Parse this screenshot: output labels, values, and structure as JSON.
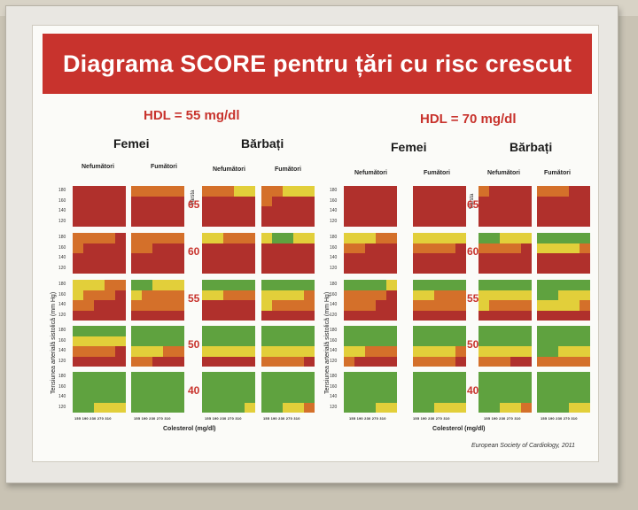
{
  "title": "Diagrama SCORE pentru țări cu risc crescut",
  "panels": [
    {
      "hdl": "HDL = 55 mg/dl",
      "female": "Femei",
      "male": "Bărbați"
    },
    {
      "hdl": "HDL = 70 mg/dl",
      "female": "Femei",
      "male": "Bărbați"
    }
  ],
  "smoking": {
    "non": "Nefumători",
    "smoker": "Fumători"
  },
  "age_caption": "Vârsta",
  "ages": [
    "65",
    "60",
    "55",
    "50",
    "40"
  ],
  "bp_values": [
    "180",
    "160",
    "140",
    "120"
  ],
  "bp_axis_label": "Tensiunea arterială sistolică (mm Hg)",
  "cholesterol_ticks": "155 190 230 270 310",
  "cholesterol_label": "Colesterol (mg/dl)",
  "footer": "European Society of Cardiology, 2011",
  "colors": {
    "red": "#b0302c",
    "orange": "#d4702a",
    "yellow": "#e2cf3a",
    "green": "#5fa23f",
    "banner": "#c8332d"
  },
  "grid_levels": [
    [
      [
        3,
        3,
        3,
        3,
        3,
        2,
        2,
        2,
        2,
        2,
        2,
        2,
        2,
        1,
        1,
        2,
        2,
        1,
        1,
        1
      ],
      [
        3,
        3,
        3,
        3,
        3,
        3,
        3,
        3,
        3,
        3,
        3,
        3,
        3,
        3,
        3,
        2,
        3,
        3,
        3,
        3
      ],
      [
        3,
        3,
        3,
        3,
        3,
        3,
        3,
        3,
        3,
        3,
        3,
        3,
        3,
        3,
        3,
        3,
        3,
        3,
        3,
        3
      ],
      [
        3,
        3,
        3,
        3,
        3,
        3,
        3,
        3,
        3,
        3,
        3,
        3,
        3,
        3,
        3,
        3,
        3,
        3,
        3,
        3
      ],
      [
        2,
        2,
        2,
        2,
        3,
        2,
        2,
        2,
        2,
        2,
        1,
        1,
        2,
        2,
        2,
        1,
        0,
        0,
        1,
        1
      ],
      [
        2,
        3,
        3,
        3,
        3,
        2,
        2,
        3,
        3,
        3,
        3,
        3,
        3,
        3,
        3,
        3,
        3,
        3,
        3,
        3
      ],
      [
        3,
        3,
        3,
        3,
        3,
        3,
        3,
        3,
        3,
        3,
        3,
        3,
        3,
        3,
        3,
        3,
        3,
        3,
        3,
        3
      ],
      [
        3,
        3,
        3,
        3,
        3,
        3,
        3,
        3,
        3,
        3,
        3,
        3,
        3,
        3,
        3,
        3,
        3,
        3,
        3,
        3
      ],
      [
        1,
        1,
        1,
        2,
        2,
        0,
        0,
        1,
        1,
        1,
        0,
        0,
        0,
        0,
        0,
        0,
        0,
        0,
        0,
        0
      ],
      [
        1,
        2,
        2,
        2,
        3,
        1,
        2,
        2,
        2,
        2,
        1,
        1,
        2,
        2,
        2,
        1,
        1,
        1,
        1,
        2
      ],
      [
        2,
        2,
        3,
        3,
        3,
        2,
        2,
        2,
        2,
        2,
        3,
        3,
        3,
        3,
        3,
        1,
        2,
        2,
        2,
        2
      ],
      [
        3,
        3,
        3,
        3,
        3,
        3,
        3,
        3,
        3,
        3,
        3,
        3,
        3,
        3,
        3,
        3,
        3,
        3,
        3,
        3
      ],
      [
        0,
        0,
        0,
        0,
        0,
        0,
        0,
        0,
        0,
        0,
        0,
        0,
        0,
        0,
        0,
        0,
        0,
        0,
        0,
        0
      ],
      [
        1,
        1,
        1,
        1,
        1,
        0,
        0,
        0,
        0,
        0,
        0,
        0,
        0,
        0,
        0,
        0,
        0,
        0,
        0,
        0
      ],
      [
        2,
        2,
        2,
        2,
        3,
        1,
        1,
        1,
        2,
        2,
        1,
        1,
        1,
        1,
        1,
        1,
        1,
        1,
        1,
        1
      ],
      [
        3,
        3,
        3,
        3,
        3,
        2,
        2,
        3,
        3,
        3,
        3,
        3,
        3,
        3,
        3,
        2,
        2,
        2,
        2,
        3
      ],
      [
        0,
        0,
        0,
        0,
        0,
        0,
        0,
        0,
        0,
        0,
        0,
        0,
        0,
        0,
        0,
        0,
        0,
        0,
        0,
        0
      ],
      [
        0,
        0,
        0,
        0,
        0,
        0,
        0,
        0,
        0,
        0,
        0,
        0,
        0,
        0,
        0,
        0,
        0,
        0,
        0,
        0
      ],
      [
        0,
        0,
        0,
        0,
        0,
        0,
        0,
        0,
        0,
        0,
        0,
        0,
        0,
        0,
        0,
        0,
        0,
        0,
        0,
        0
      ],
      [
        0,
        0,
        1,
        1,
        1,
        0,
        0,
        0,
        0,
        0,
        0,
        0,
        0,
        0,
        1,
        0,
        0,
        1,
        1,
        2
      ]
    ],
    [
      [
        3,
        3,
        3,
        3,
        3,
        3,
        3,
        3,
        3,
        3,
        2,
        3,
        3,
        3,
        3,
        2,
        2,
        2,
        3,
        3
      ],
      [
        3,
        3,
        3,
        3,
        3,
        3,
        3,
        3,
        3,
        3,
        3,
        3,
        3,
        3,
        3,
        3,
        3,
        3,
        3,
        3
      ],
      [
        3,
        3,
        3,
        3,
        3,
        3,
        3,
        3,
        3,
        3,
        3,
        3,
        3,
        3,
        3,
        3,
        3,
        3,
        3,
        3
      ],
      [
        3,
        3,
        3,
        3,
        3,
        3,
        3,
        3,
        3,
        3,
        3,
        3,
        3,
        3,
        3,
        3,
        3,
        3,
        3,
        3
      ],
      [
        1,
        1,
        1,
        2,
        2,
        1,
        1,
        1,
        1,
        1,
        0,
        0,
        1,
        1,
        1,
        0,
        0,
        0,
        0,
        0
      ],
      [
        2,
        2,
        3,
        3,
        3,
        2,
        2,
        2,
        2,
        3,
        2,
        2,
        2,
        2,
        3,
        1,
        1,
        1,
        1,
        2
      ],
      [
        3,
        3,
        3,
        3,
        3,
        3,
        3,
        3,
        3,
        3,
        3,
        3,
        3,
        3,
        3,
        3,
        3,
        3,
        3,
        3
      ],
      [
        3,
        3,
        3,
        3,
        3,
        3,
        3,
        3,
        3,
        3,
        3,
        3,
        3,
        3,
        3,
        3,
        3,
        3,
        3,
        3
      ],
      [
        0,
        0,
        0,
        0,
        1,
        0,
        0,
        0,
        0,
        0,
        0,
        0,
        0,
        0,
        0,
        0,
        0,
        0,
        0,
        0
      ],
      [
        2,
        2,
        2,
        2,
        3,
        1,
        1,
        2,
        2,
        2,
        1,
        1,
        1,
        1,
        1,
        0,
        0,
        1,
        1,
        1
      ],
      [
        2,
        2,
        2,
        3,
        3,
        2,
        2,
        2,
        2,
        2,
        1,
        2,
        2,
        2,
        2,
        1,
        1,
        1,
        1,
        2
      ],
      [
        3,
        3,
        3,
        3,
        3,
        3,
        3,
        3,
        3,
        3,
        3,
        3,
        3,
        3,
        3,
        3,
        3,
        3,
        3,
        3
      ],
      [
        0,
        0,
        0,
        0,
        0,
        0,
        0,
        0,
        0,
        0,
        0,
        0,
        0,
        0,
        0,
        0,
        0,
        0,
        0,
        0
      ],
      [
        0,
        0,
        0,
        0,
        0,
        0,
        0,
        0,
        0,
        0,
        0,
        0,
        0,
        0,
        0,
        0,
        0,
        0,
        0,
        0
      ],
      [
        1,
        1,
        2,
        2,
        2,
        1,
        1,
        1,
        1,
        2,
        1,
        1,
        1,
        1,
        1,
        0,
        0,
        1,
        1,
        1
      ],
      [
        2,
        3,
        3,
        3,
        3,
        2,
        2,
        2,
        2,
        3,
        2,
        2,
        2,
        3,
        3,
        2,
        2,
        2,
        2,
        2
      ],
      [
        0,
        0,
        0,
        0,
        0,
        0,
        0,
        0,
        0,
        0,
        0,
        0,
        0,
        0,
        0,
        0,
        0,
        0,
        0,
        0
      ],
      [
        0,
        0,
        0,
        0,
        0,
        0,
        0,
        0,
        0,
        0,
        0,
        0,
        0,
        0,
        0,
        0,
        0,
        0,
        0,
        0
      ],
      [
        0,
        0,
        0,
        0,
        0,
        0,
        0,
        0,
        0,
        0,
        0,
        0,
        0,
        0,
        0,
        0,
        0,
        0,
        0,
        0
      ],
      [
        0,
        0,
        0,
        1,
        1,
        0,
        0,
        1,
        1,
        1,
        0,
        0,
        1,
        1,
        2,
        0,
        0,
        0,
        1,
        1
      ]
    ]
  ]
}
